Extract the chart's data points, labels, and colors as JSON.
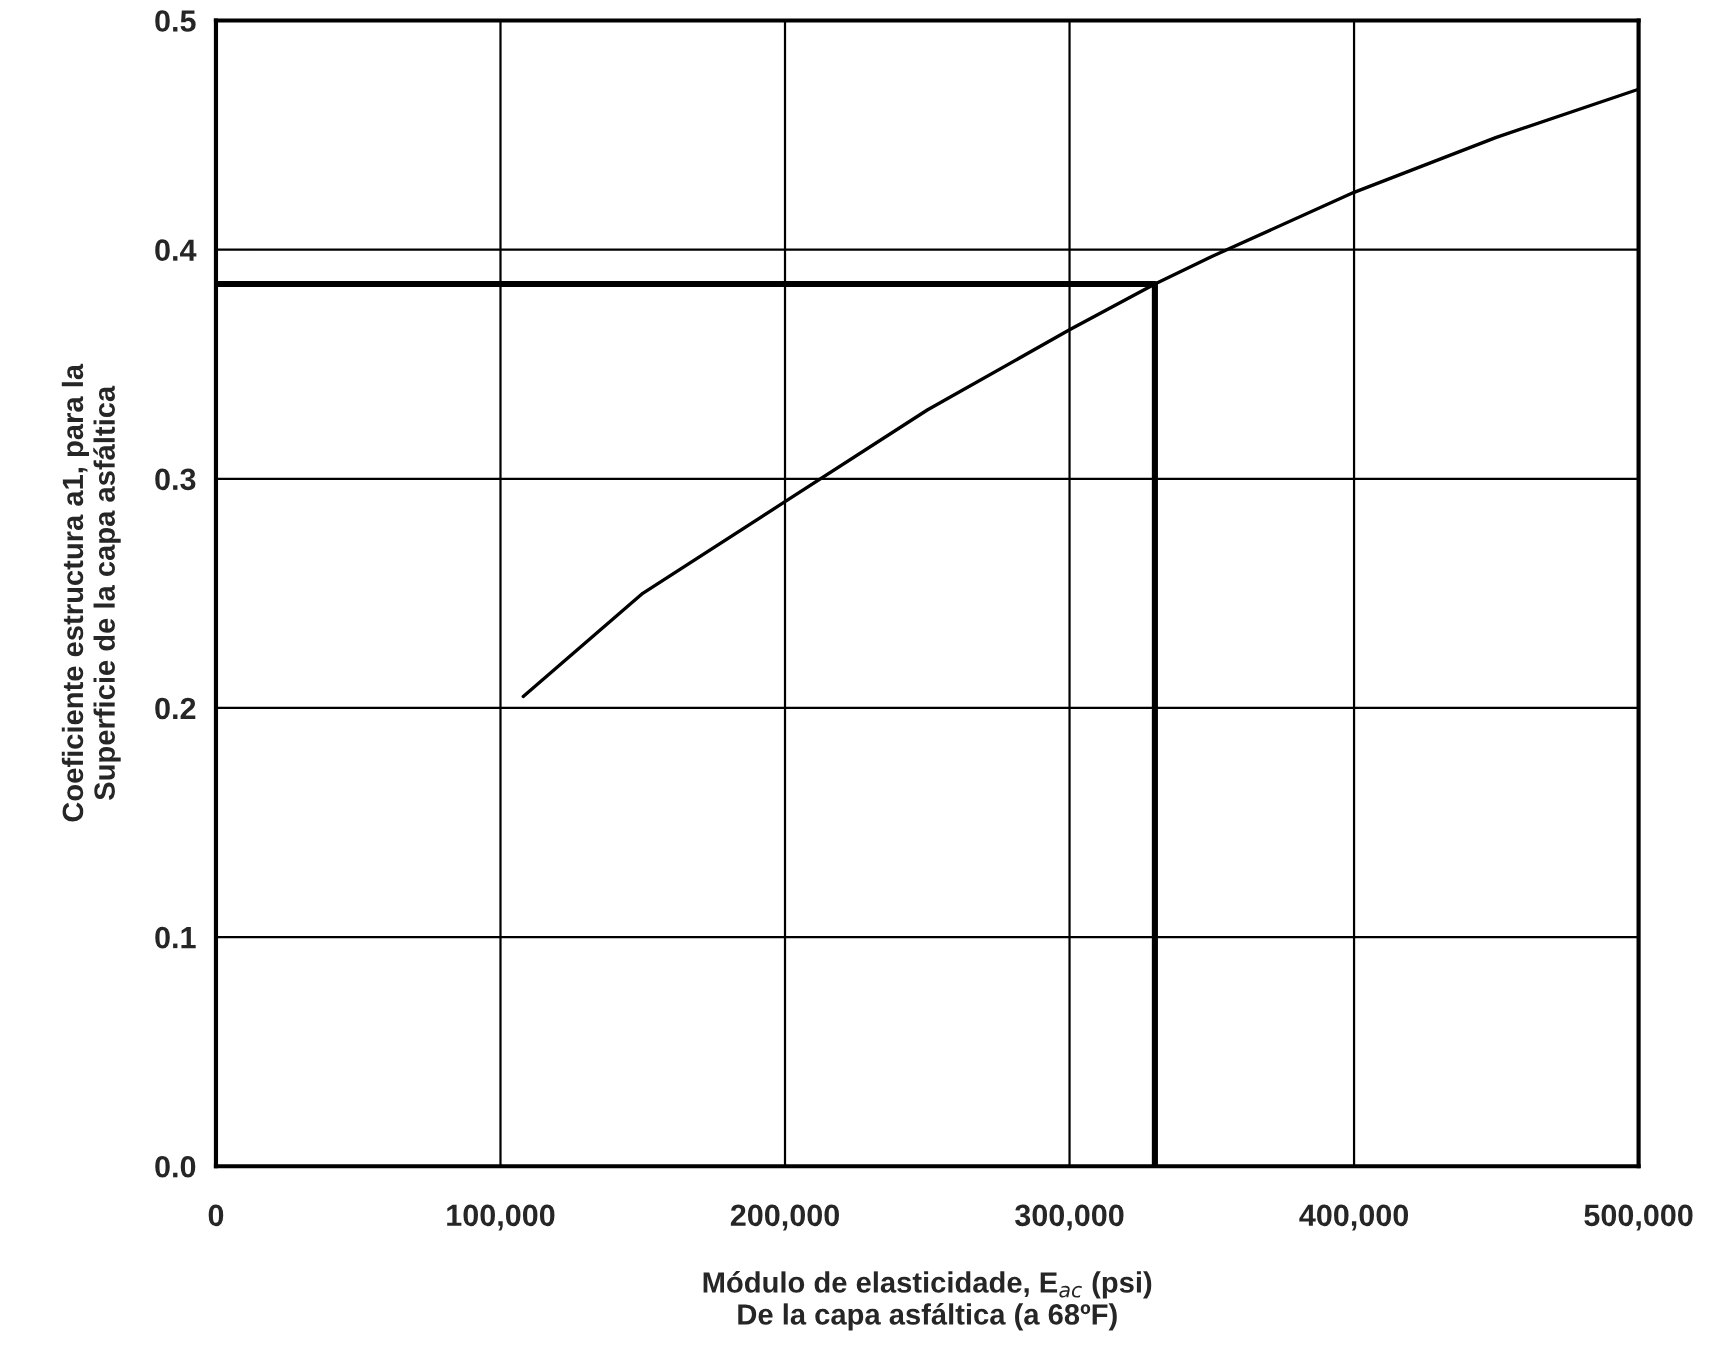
{
  "chart_data": {
    "type": "line",
    "xlabel": "Módulo de elasticidade, E$_{ac}$ (psi)\nDe la capa asfáltica (a 68ºF)",
    "ylabel": "Coeficiente estructura a1, para la\nSuperficie de la capa asfáltica",
    "series": [
      {
        "color": "#000000",
        "x": [
          108000,
          150000,
          200000,
          250000,
          300000,
          330000,
          350000,
          400000,
          450000,
          500000
        ],
        "values": [
          0.205,
          0.25,
          0.29,
          0.33,
          0.365,
          0.385,
          0.397,
          0.425,
          0.449,
          0.47
        ]
      },
      {
        "color": "#000000",
        "x": [
          0,
          330000,
          330000
        ],
        "values": [
          0.385,
          0.385,
          0.0
        ]
      }
    ],
    "xlim": [
      0,
      500000
    ],
    "ylim": [
      0,
      0.5
    ],
    "xticks": [
      0,
      {
        "value": 100000,
        "label": "100,000"
      },
      {
        "value": 200000,
        "label": "200,000"
      },
      {
        "value": 300000,
        "label": "300,000"
      },
      {
        "value": 400000,
        "label": "400,000"
      },
      {
        "value": 500000,
        "label": "500,000"
      }
    ],
    "yticks": [
      {
        "value": 0,
        "label": "0.0"
      },
      0.1,
      0.2,
      0.3,
      0.4,
      0.5
    ],
    "grid": true,
    "marker": "none",
    "line_style": "solid"
  }
}
